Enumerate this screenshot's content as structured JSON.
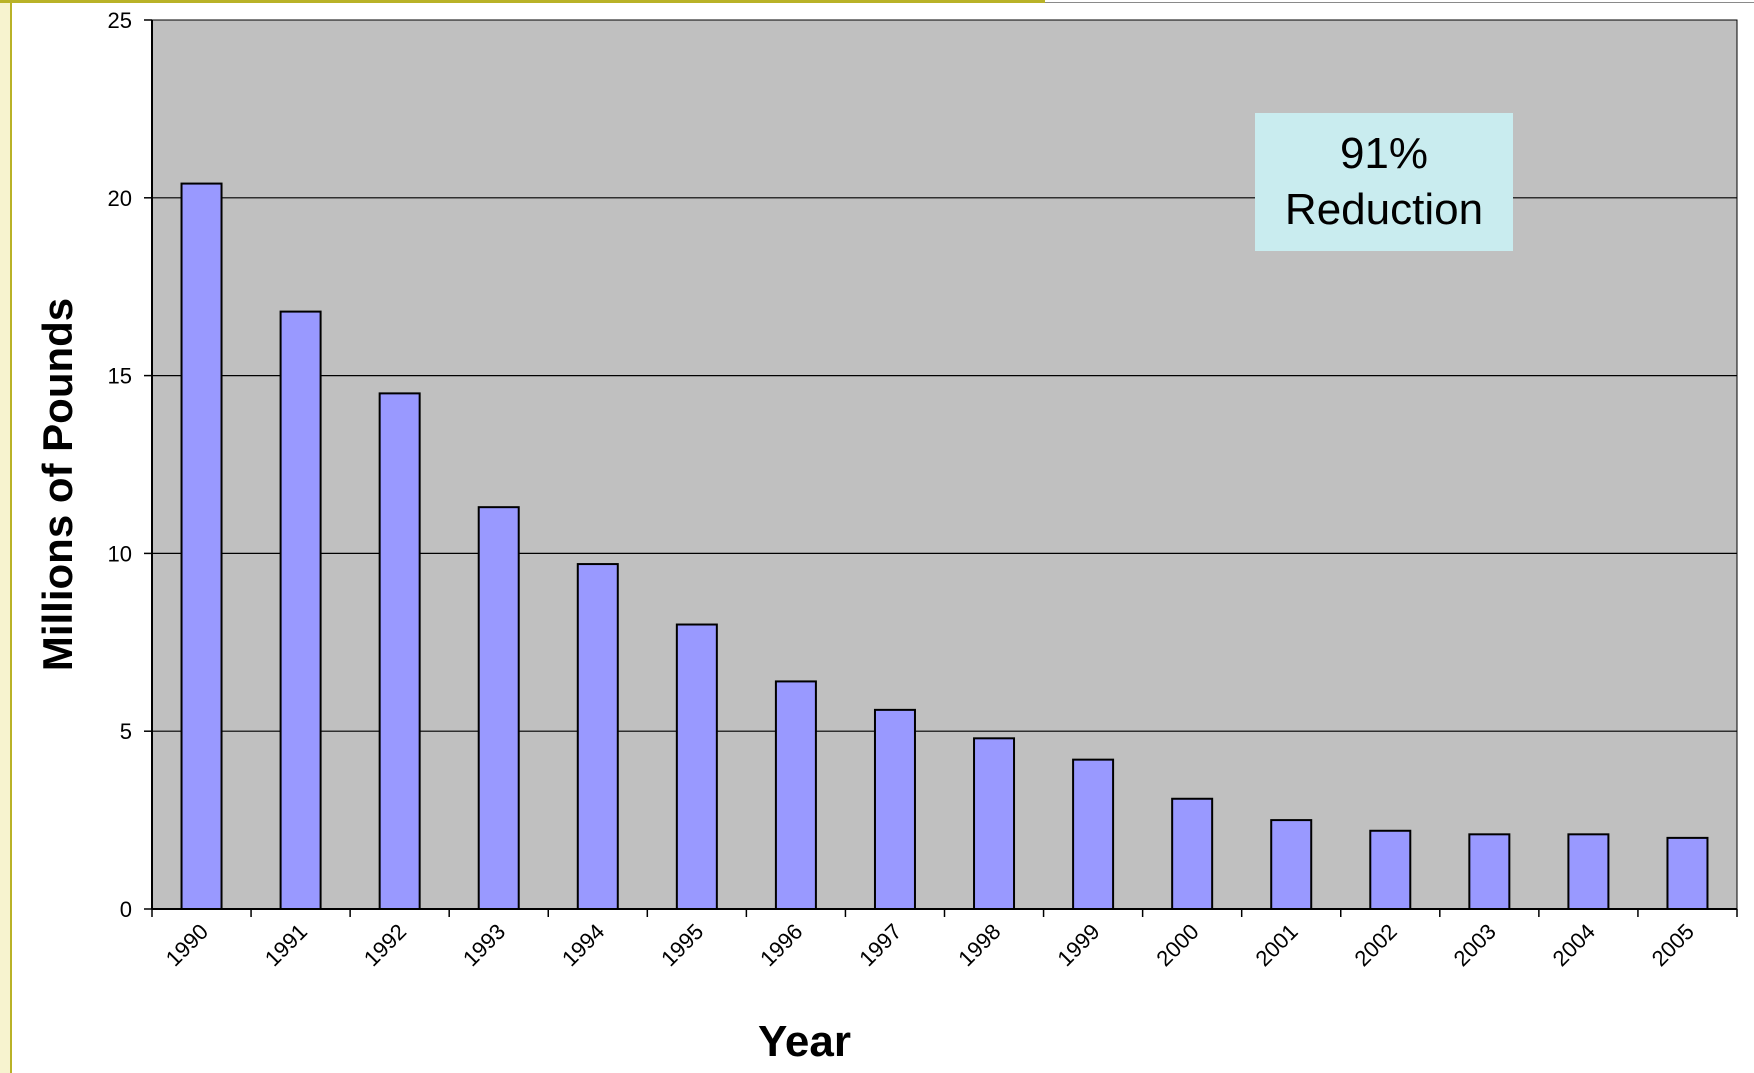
{
  "chart_data": {
    "type": "bar",
    "categories": [
      "1990",
      "1991",
      "1992",
      "1993",
      "1994",
      "1995",
      "1996",
      "1997",
      "1998",
      "1999",
      "2000",
      "2001",
      "2002",
      "2003",
      "2004",
      "2005"
    ],
    "values": [
      20.4,
      16.8,
      14.5,
      11.3,
      9.7,
      8.0,
      6.4,
      5.6,
      4.8,
      4.2,
      3.1,
      2.5,
      2.2,
      2.1,
      2.1,
      2.0
    ],
    "xlabel": "Year",
    "ylabel": "Millions of Pounds",
    "ylim": [
      0,
      25
    ],
    "yticks": [
      "0",
      "5",
      "10",
      "15",
      "20",
      "25"
    ],
    "grid": true,
    "legend": "none",
    "annotation": [
      "91%",
      "Reduction"
    ],
    "colors": {
      "bar_fill": "#9999ff",
      "bar_stroke": "#000000",
      "plot_background": "#c0c0c0",
      "annotation_background": "#c9ecef"
    }
  }
}
